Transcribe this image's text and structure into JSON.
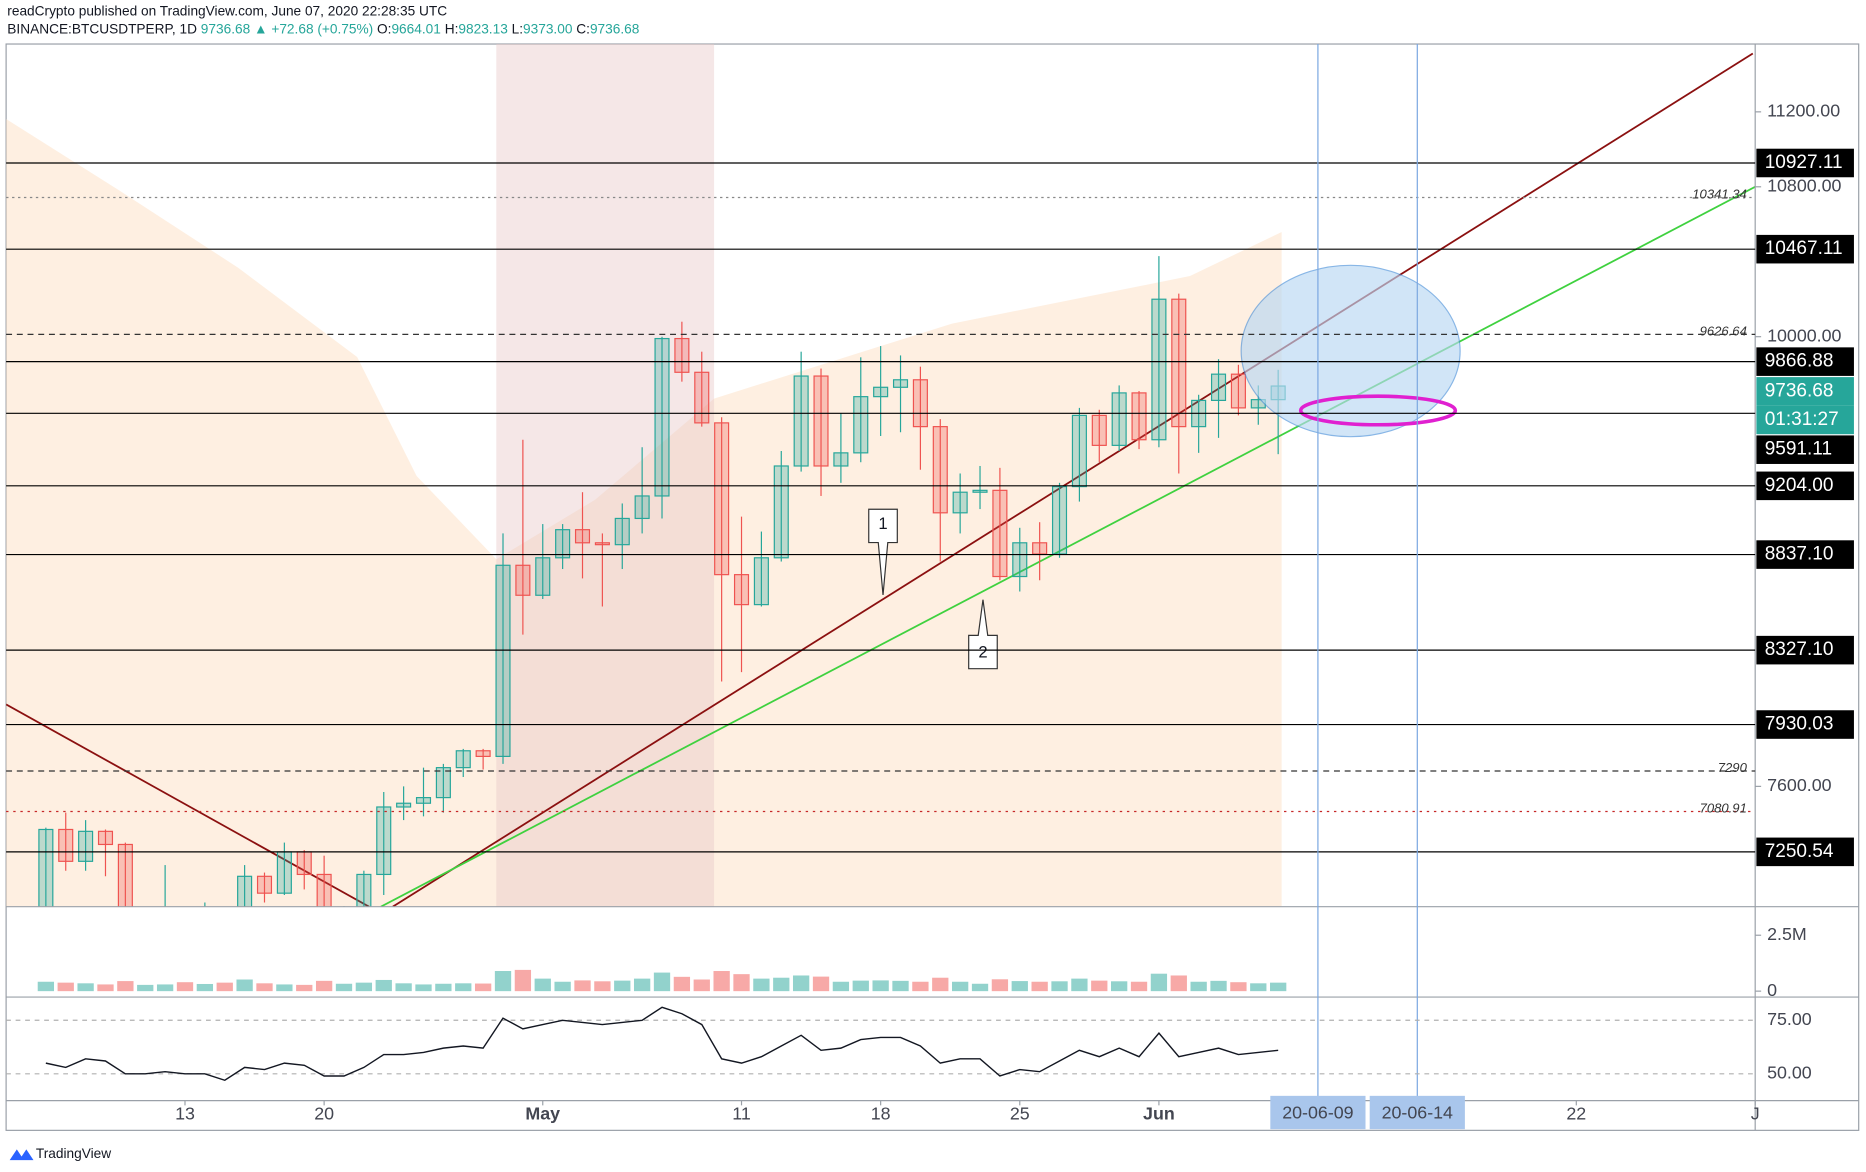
{
  "chart_data": {
    "type": "candlestick",
    "publisher": "readCrypto published on TradingView.com, June 07, 2020 22:28:35 UTC",
    "symbol": "BINANCE:BTCUSDTPERP, 1D",
    "last": "9736.68",
    "change": "▲ +72.68 (+0.75%)",
    "ohlc": [
      {
        "key": "O:",
        "value": "9664.01"
      },
      {
        "key": "H:",
        "value": "9823.13"
      },
      {
        "key": "L:",
        "value": "9373.00"
      },
      {
        "key": "C:",
        "value": "9736.68"
      }
    ],
    "x": [
      "2020-04-06",
      "2020-04-07",
      "2020-04-08",
      "2020-04-09",
      "2020-04-10",
      "2020-04-11",
      "2020-04-12",
      "2020-04-13",
      "2020-04-14",
      "2020-04-15",
      "2020-04-16",
      "2020-04-17",
      "2020-04-18",
      "2020-04-19",
      "2020-04-20",
      "2020-04-21",
      "2020-04-22",
      "2020-04-23",
      "2020-04-24",
      "2020-04-25",
      "2020-04-26",
      "2020-04-27",
      "2020-04-28",
      "2020-04-29",
      "2020-04-30",
      "2020-05-01",
      "2020-05-02",
      "2020-05-03",
      "2020-05-04",
      "2020-05-05",
      "2020-05-06",
      "2020-05-07",
      "2020-05-08",
      "2020-05-09",
      "2020-05-10",
      "2020-05-11",
      "2020-05-12",
      "2020-05-13",
      "2020-05-14",
      "2020-05-15",
      "2020-05-16",
      "2020-05-17",
      "2020-05-18",
      "2020-05-19",
      "2020-05-20",
      "2020-05-21",
      "2020-05-22",
      "2020-05-23",
      "2020-05-24",
      "2020-05-25",
      "2020-05-26",
      "2020-05-27",
      "2020-05-28",
      "2020-05-29",
      "2020-05-30",
      "2020-05-31",
      "2020-06-01",
      "2020-06-02",
      "2020-06-03",
      "2020-06-04",
      "2020-06-05",
      "2020-06-06",
      "2020-06-07"
    ],
    "open": [
      6780,
      7370,
      7200,
      7360,
      7290,
      6870,
      6890,
      6910,
      6860,
      6880,
      6640,
      7120,
      7030,
      7250,
      7130,
      6850,
      6860,
      7130,
      7490,
      7510,
      7540,
      7700,
      7790,
      7760,
      8780,
      8620,
      8820,
      8970,
      8900,
      8890,
      9030,
      9150,
      9990,
      9810,
      9540,
      8730,
      8570,
      8820,
      9310,
      9790,
      9310,
      9380,
      9680,
      9730,
      9770,
      9520,
      9060,
      9170,
      9180,
      8720,
      8900,
      8840,
      9200,
      9580,
      9420,
      9700,
      9450,
      10200,
      9520,
      9660,
      9800,
      9620,
      9664.01
    ],
    "high": [
      7380,
      7460,
      7420,
      7370,
      7300,
      6950,
      7180,
      6920,
      6980,
      6940,
      7180,
      7140,
      7300,
      7260,
      7230,
      6960,
      7150,
      7570,
      7600,
      7700,
      7720,
      7800,
      7800,
      8950,
      9450,
      9000,
      9000,
      9170,
      8950,
      9110,
      9410,
      10000,
      10080,
      9920,
      9570,
      9040,
      8960,
      9390,
      9920,
      9830,
      9590,
      9890,
      9950,
      9900,
      9840,
      9560,
      9270,
      9310,
      9300,
      8980,
      9010,
      9220,
      9620,
      9610,
      9740,
      9710,
      10430,
      10230,
      9690,
      9880,
      9850,
      9740,
      9823.13
    ],
    "low": [
      6770,
      7150,
      7150,
      7120,
      6760,
      6780,
      6820,
      6560,
      6800,
      6620,
      6500,
      6980,
      7020,
      7050,
      6790,
      6810,
      6850,
      7020,
      7420,
      7440,
      7460,
      7650,
      7690,
      7720,
      8410,
      8600,
      8760,
      8710,
      8560,
      8760,
      8950,
      9030,
      9760,
      9520,
      8160,
      8210,
      8560,
      8800,
      9280,
      9150,
      9220,
      9330,
      9470,
      9490,
      9290,
      8800,
      8950,
      9080,
      8700,
      8640,
      8700,
      8820,
      9120,
      9330,
      9390,
      9400,
      9410,
      9270,
      9380,
      9460,
      9580,
      9530,
      9373.0
    ],
    "close": [
      7370,
      7200,
      7360,
      7290,
      6870,
      6890,
      6910,
      6860,
      6880,
      6640,
      7120,
      7030,
      7250,
      7130,
      6850,
      6860,
      7130,
      7490,
      7510,
      7540,
      7700,
      7790,
      7760,
      8780,
      8620,
      8820,
      8970,
      8900,
      8890,
      9030,
      9150,
      9990,
      9810,
      9540,
      8730,
      8570,
      8820,
      9310,
      9790,
      9310,
      9380,
      9680,
      9730,
      9770,
      9520,
      9060,
      9170,
      9180,
      8720,
      8900,
      8840,
      9200,
      9580,
      9420,
      9700,
      9450,
      10200,
      9520,
      9660,
      9800,
      9620,
      9664.01,
      9736.68
    ],
    "up_color": "#26a69a",
    "down_color": "#ef5350",
    "xlim": [
      "2020-04-04",
      "2020-07-01"
    ],
    "xticks": [
      {
        "value": "2020-04-13",
        "label": "13"
      },
      {
        "value": "2020-04-20",
        "label": "20"
      },
      {
        "value": "2020-05-01",
        "label": "May"
      },
      {
        "value": "2020-05-11",
        "label": "11"
      },
      {
        "value": "2020-05-18",
        "label": "18"
      },
      {
        "value": "2020-05-25",
        "label": "25"
      },
      {
        "value": "2020-06-01",
        "label": "Jun"
      },
      {
        "value": "2020-06-22",
        "label": "22"
      },
      {
        "value": "2020-07-01",
        "label": "J"
      }
    ],
    "marked_dates": [
      {
        "value": "2020-06-09",
        "label": "20-06-09"
      },
      {
        "value": "2020-06-14",
        "label": "20-06-14"
      }
    ],
    "ylim": [
      6958,
      11562
    ],
    "yticks": [
      {
        "value": 11200,
        "label": "11200.00"
      },
      {
        "value": 10800,
        "label": "10800.00"
      },
      {
        "value": 10000,
        "label": "10000.00"
      },
      {
        "value": 7600,
        "label": "7600.00"
      }
    ],
    "price_levels": [
      {
        "value": 10927.11,
        "label": "10927.11"
      },
      {
        "value": 10467.11,
        "label": "10467.11"
      },
      {
        "value": 9866.88,
        "label": "9866.88"
      },
      {
        "value": 9591.11,
        "label": "9591.11"
      },
      {
        "value": 9204,
        "label": "9204.00"
      },
      {
        "value": 8837.1,
        "label": "8837.10"
      },
      {
        "value": 8327.1,
        "label": "8327.10"
      },
      {
        "value": 7930.03,
        "label": "7930.03"
      },
      {
        "value": 7250.54,
        "label": "7250.54"
      }
    ],
    "last_price": {
      "value": 9736.68,
      "label": "9736.68"
    },
    "timer": "01:31:27",
    "level_notes": [
      "10341.34",
      "9626.64",
      "7290",
      "7080.91"
    ],
    "annotations": [
      "1",
      "2"
    ],
    "volume": {
      "values": [
        420000,
        380000,
        350000,
        300000,
        450000,
        280000,
        300000,
        400000,
        320000,
        380000,
        520000,
        350000,
        300000,
        280000,
        460000,
        330000,
        380000,
        500000,
        350000,
        300000,
        330000,
        350000,
        340000,
        900000,
        950000,
        560000,
        420000,
        480000,
        440000,
        470000,
        560000,
        830000,
        640000,
        520000,
        900000,
        760000,
        560000,
        600000,
        700000,
        650000,
        420000,
        470000,
        480000,
        460000,
        420000,
        600000,
        420000,
        330000,
        530000,
        450000,
        420000,
        440000,
        560000,
        470000,
        440000,
        420000,
        780000,
        700000,
        420000,
        460000,
        400000,
        350000,
        380000
      ],
      "ylim": [
        -266000,
        3777000
      ],
      "yticks": [
        {
          "value": 2500000,
          "label": "2.5M"
        },
        0
      ]
    },
    "rsi": {
      "values": [
        55,
        53,
        57,
        56,
        50,
        50,
        51,
        50,
        50,
        47,
        53,
        52,
        55,
        54,
        49,
        49,
        53,
        59,
        59,
        60,
        62,
        63,
        62,
        76,
        71,
        73,
        75,
        74,
        73,
        74,
        75,
        81,
        78,
        73,
        57,
        55,
        58,
        63,
        68,
        61,
        62,
        66,
        67,
        67,
        63,
        55,
        57,
        57,
        49,
        52,
        51,
        56,
        61,
        58,
        62,
        58,
        69,
        58,
        60,
        62,
        59,
        60,
        61
      ],
      "color": "#131722",
      "ylim": [
        37.5,
        85.8
      ],
      "yticks": [
        {
          "value": 75,
          "label": "75.00"
        },
        {
          "value": 50,
          "label": "50.00"
        }
      ]
    }
  }
}
